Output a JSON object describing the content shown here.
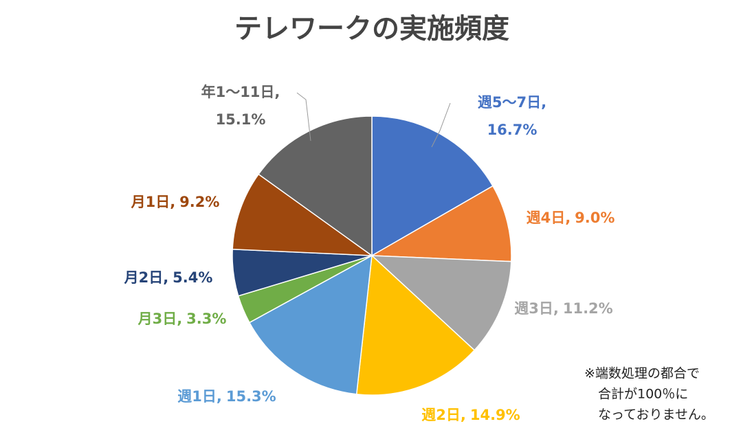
{
  "chart_data": {
    "type": "pie",
    "title": "テレワークの実施頻度",
    "categories": [
      "週5～7日,",
      "週4日,",
      "週3日,",
      "週2日,",
      "週1日,",
      "月3日,",
      "月2日,",
      "月1日,",
      "年1～11日,"
    ],
    "values": [
      16.7,
      9.0,
      11.2,
      14.9,
      15.3,
      3.3,
      5.4,
      9.2,
      15.1
    ],
    "value_labels": [
      "16.7%",
      "9.0%",
      "11.2%",
      "14.9%",
      "15.3%",
      "3.3%",
      "5.4%",
      "9.2%",
      "15.1%"
    ],
    "colors": [
      "#4472c4",
      "#ed7d31",
      "#a5a5a5",
      "#ffc000",
      "#5b9bd5",
      "#70ad47",
      "#264478",
      "#9e480e",
      "#636363"
    ],
    "note": [
      "※端数処理の都合で",
      "合計が100％に",
      "なっておりません。"
    ]
  }
}
